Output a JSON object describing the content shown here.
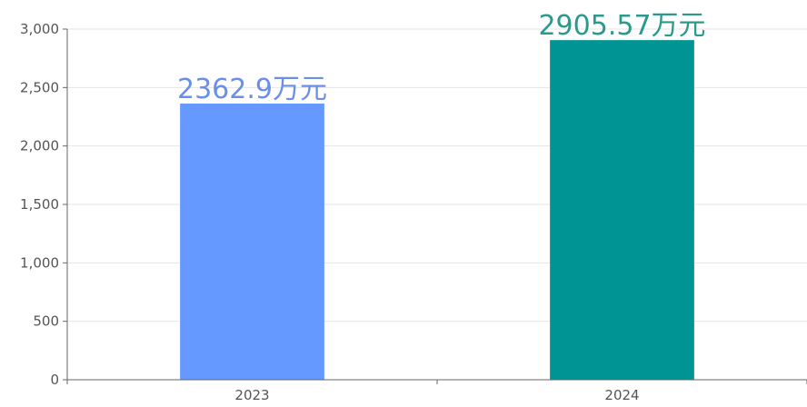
{
  "chart_data": {
    "type": "bar",
    "title": "",
    "xlabel": "",
    "ylabel": "",
    "categories": [
      "2023",
      "2024"
    ],
    "values": [
      2362.9,
      2905.57
    ],
    "data_labels": [
      "2362.9万元",
      "2905.57万元"
    ],
    "bar_colors": [
      "#6699ff",
      "#009494"
    ],
    "label_colors": [
      "#6b8fe8",
      "#2a9a8c"
    ],
    "ylim": [
      0,
      3000
    ],
    "yticks": [
      0,
      500,
      1000,
      1500,
      2000,
      2500,
      3000
    ],
    "ytick_labels": [
      "0",
      "500",
      "1,000",
      "1,500",
      "2,000",
      "2,500",
      "3,000"
    ],
    "grid": true,
    "legend": "none"
  }
}
